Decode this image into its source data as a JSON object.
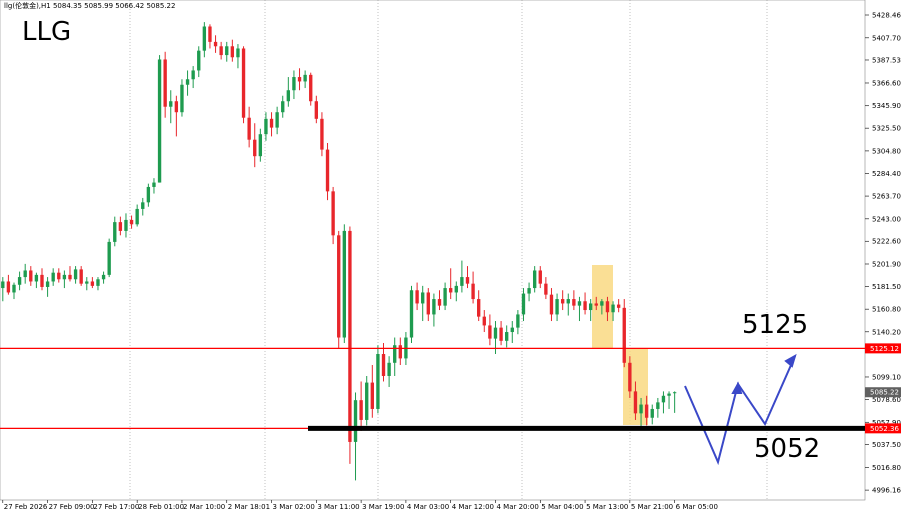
{
  "chart_data": {
    "type": "candlestick",
    "title": "LLG",
    "header": "llg(伦敦金),H1  5084.35 5085.99 5066.42 5085.22",
    "up_color": "#1e9b4f",
    "down_color": "#e8262b",
    "ylim": [
      4987.16,
      5442.11
    ],
    "yticks": [
      5428.46,
      {
        "value": 5407.7,
        "label": "5407.70"
      },
      5387.53,
      {
        "value": 5366.6,
        "label": "5366.60"
      },
      {
        "value": 5345.9,
        "label": "5345.90"
      },
      {
        "value": 5325.5,
        "label": "5325.50"
      },
      {
        "value": 5304.8,
        "label": "5304.80"
      },
      {
        "value": 5284.4,
        "label": "5284.40"
      },
      {
        "value": 5263.7,
        "label": "5263.70"
      },
      {
        "value": 5243,
        "label": "5243.00"
      },
      {
        "value": 5222.6,
        "label": "5222.60"
      },
      {
        "value": 5201.9,
        "label": "5201.90"
      },
      {
        "value": 5181.5,
        "label": "5181.50"
      },
      {
        "value": 5160.8,
        "label": "5160.80"
      },
      {
        "value": 5140.2,
        "label": "5140.20"
      },
      {
        "value": 5099.1,
        "label": "5099.10"
      },
      {
        "value": 5078.6,
        "label": "5078.60"
      },
      {
        "value": 5057.9,
        "label": "5057.90"
      },
      {
        "value": 5037.5,
        "label": "5037.50"
      },
      {
        "value": 5016.8,
        "label": "5016.80"
      },
      4996.16
    ],
    "xlim": [
      -0.5,
      154
    ],
    "xticks": [
      {
        "value": 0,
        "label": "27 Feb 2026"
      },
      {
        "value": 8,
        "label": "27 Feb 09:00"
      },
      {
        "value": 16,
        "label": "27 Feb 17:00"
      },
      {
        "value": 24,
        "label": "28 Feb 01:00"
      },
      {
        "value": 32,
        "label": "2 Mar 10:00"
      },
      {
        "value": 40,
        "label": "2 Mar 18:01"
      },
      {
        "value": 48,
        "label": "3 Mar 02:00"
      },
      {
        "value": 56,
        "label": "3 Mar 11:00"
      },
      {
        "value": 64,
        "label": "3 Mar 19:00"
      },
      {
        "value": 72,
        "label": "4 Mar 03:00"
      },
      {
        "value": 80,
        "label": "4 Mar 12:00"
      },
      {
        "value": 88,
        "label": "4 Mar 20:00"
      },
      {
        "value": 96,
        "label": "5 Mar 04:00"
      },
      {
        "value": 104,
        "label": "5 Mar 13:00"
      },
      {
        "value": 112,
        "label": "5 Mar 21:00"
      },
      {
        "value": 120,
        "label": "6 Mar 05:00"
      }
    ],
    "price_lines": [
      {
        "value": 5125.12,
        "color": "#ff0000"
      },
      {
        "value": 5052.36,
        "color": "#ff0000"
      },
      {
        "value": 5085.22,
        "color": "#606060"
      }
    ],
    "annotations": [
      "5125",
      "5052"
    ],
    "candles": [
      [
        5180,
        5190,
        5168,
        5186
      ],
      [
        5186,
        5192,
        5174,
        5176
      ],
      [
        5176,
        5185,
        5170,
        5183
      ],
      [
        5183,
        5195,
        5178,
        5190
      ],
      [
        5190,
        5202,
        5184,
        5196
      ],
      [
        5196,
        5200,
        5182,
        5186
      ],
      [
        5186,
        5194,
        5180,
        5192
      ],
      [
        5192,
        5198,
        5178,
        5181
      ],
      [
        5181,
        5190,
        5172,
        5186
      ],
      [
        5186,
        5198,
        5182,
        5194
      ],
      [
        5194,
        5198,
        5185,
        5188
      ],
      [
        5188,
        5196,
        5180,
        5192
      ],
      [
        5192,
        5200,
        5186,
        5188
      ],
      [
        5188,
        5200,
        5184,
        5197
      ],
      [
        5197,
        5200,
        5182,
        5184
      ],
      [
        5184,
        5190,
        5178,
        5186
      ],
      [
        5186,
        5190,
        5180,
        5182
      ],
      [
        5182,
        5190,
        5178,
        5188
      ],
      [
        5188,
        5195,
        5184,
        5192
      ],
      [
        5192,
        5225,
        5190,
        5222
      ],
      [
        5222,
        5245,
        5218,
        5240
      ],
      [
        5240,
        5245,
        5228,
        5232
      ],
      [
        5232,
        5248,
        5226,
        5242
      ],
      [
        5242,
        5246,
        5234,
        5238
      ],
      [
        5238,
        5256,
        5236,
        5252
      ],
      [
        5252,
        5262,
        5246,
        5258
      ],
      [
        5258,
        5275,
        5254,
        5272
      ],
      [
        5272,
        5280,
        5266,
        5276
      ],
      [
        5276,
        5392,
        5276,
        5388
      ],
      [
        5388,
        5395,
        5335,
        5345
      ],
      [
        5345,
        5360,
        5330,
        5350
      ],
      [
        5350,
        5355,
        5318,
        5340
      ],
      [
        5340,
        5370,
        5336,
        5365
      ],
      [
        5365,
        5378,
        5355,
        5370
      ],
      [
        5370,
        5382,
        5362,
        5378
      ],
      [
        5378,
        5400,
        5372,
        5396
      ],
      [
        5396,
        5422,
        5390,
        5418
      ],
      [
        5418,
        5420,
        5398,
        5404
      ],
      [
        5404,
        5410,
        5394,
        5400
      ],
      [
        5400,
        5404,
        5388,
        5392
      ],
      [
        5392,
        5404,
        5386,
        5400
      ],
      [
        5400,
        5406,
        5386,
        5390
      ],
      [
        5390,
        5402,
        5380,
        5398
      ],
      [
        5398,
        5400,
        5330,
        5335
      ],
      [
        5335,
        5345,
        5308,
        5315
      ],
      [
        5315,
        5330,
        5290,
        5300
      ],
      [
        5300,
        5325,
        5295,
        5320
      ],
      [
        5320,
        5340,
        5314,
        5334
      ],
      [
        5334,
        5340,
        5318,
        5326
      ],
      [
        5326,
        5345,
        5320,
        5340
      ],
      [
        5340,
        5355,
        5335,
        5350
      ],
      [
        5350,
        5372,
        5345,
        5360
      ],
      [
        5360,
        5378,
        5352,
        5372
      ],
      [
        5372,
        5380,
        5360,
        5368
      ],
      [
        5368,
        5378,
        5362,
        5374
      ],
      [
        5374,
        5376,
        5346,
        5350
      ],
      [
        5350,
        5355,
        5330,
        5334
      ],
      [
        5334,
        5340,
        5300,
        5306
      ],
      [
        5306,
        5312,
        5260,
        5268
      ],
      [
        5268,
        5272,
        5220,
        5228
      ],
      [
        5228,
        5232,
        5125,
        5135
      ],
      [
        5135,
        5238,
        5130,
        5232
      ],
      [
        5232,
        5236,
        5020,
        5040
      ],
      [
        5040,
        5085,
        5005,
        5078
      ],
      [
        5078,
        5095,
        5050,
        5060
      ],
      [
        5060,
        5100,
        5055,
        5094
      ],
      [
        5094,
        5110,
        5062,
        5070
      ],
      [
        5070,
        5128,
        5066,
        5120
      ],
      [
        5120,
        5130,
        5095,
        5100
      ],
      [
        5100,
        5118,
        5090,
        5112
      ],
      [
        5112,
        5135,
        5100,
        5128
      ],
      [
        5128,
        5135,
        5110,
        5116
      ],
      [
        5116,
        5140,
        5110,
        5135
      ],
      [
        5135,
        5182,
        5130,
        5178
      ],
      [
        5178,
        5185,
        5160,
        5166
      ],
      [
        5166,
        5182,
        5150,
        5176
      ],
      [
        5176,
        5180,
        5150,
        5156
      ],
      [
        5156,
        5175,
        5145,
        5170
      ],
      [
        5170,
        5178,
        5160,
        5164
      ],
      [
        5164,
        5185,
        5160,
        5180
      ],
      [
        5180,
        5198,
        5170,
        5176
      ],
      [
        5176,
        5186,
        5168,
        5182
      ],
      [
        5182,
        5205,
        5176,
        5190
      ],
      [
        5190,
        5200,
        5180,
        5184
      ],
      [
        5184,
        5195,
        5166,
        5170
      ],
      [
        5170,
        5178,
        5150,
        5154
      ],
      [
        5154,
        5160,
        5140,
        5146
      ],
      [
        5146,
        5156,
        5128,
        5134
      ],
      [
        5134,
        5150,
        5120,
        5144
      ],
      [
        5144,
        5150,
        5128,
        5132
      ],
      [
        5132,
        5146,
        5126,
        5140
      ],
      [
        5140,
        5150,
        5130,
        5144
      ],
      [
        5144,
        5160,
        5138,
        5156
      ],
      [
        5156,
        5180,
        5150,
        5175
      ],
      [
        5175,
        5185,
        5168,
        5180
      ],
      [
        5180,
        5200,
        5176,
        5196
      ],
      [
        5196,
        5200,
        5180,
        5184
      ],
      [
        5184,
        5190,
        5170,
        5174
      ],
      [
        5174,
        5180,
        5150,
        5156
      ],
      [
        5156,
        5175,
        5150,
        5170
      ],
      [
        5170,
        5178,
        5160,
        5166
      ],
      [
        5166,
        5175,
        5155,
        5170
      ],
      [
        5170,
        5178,
        5160,
        5164
      ],
      [
        5164,
        5172,
        5150,
        5168
      ],
      [
        5168,
        5176,
        5156,
        5160
      ],
      [
        5160,
        5170,
        5150,
        5166
      ],
      [
        5166,
        5172,
        5160,
        5164
      ],
      [
        5164,
        5170,
        5156,
        5168
      ],
      [
        5168,
        5172,
        5150,
        5158
      ],
      [
        5158,
        5168,
        5150,
        5165
      ],
      [
        5165,
        5170,
        5158,
        5162
      ],
      [
        5162,
        5170,
        5108,
        5112
      ],
      [
        5112,
        5118,
        5080,
        5086
      ],
      [
        5086,
        5095,
        5060,
        5066
      ],
      [
        5066,
        5080,
        5054,
        5074
      ],
      [
        5074,
        5082,
        5055,
        5062
      ],
      [
        5062,
        5074,
        5056,
        5070
      ],
      [
        5070,
        5080,
        5062,
        5076
      ],
      [
        5076,
        5086,
        5066,
        5082
      ],
      [
        5082,
        5086,
        5070,
        5084
      ],
      [
        5084.35,
        5085.99,
        5066.42,
        5085.22
      ]
    ]
  }
}
